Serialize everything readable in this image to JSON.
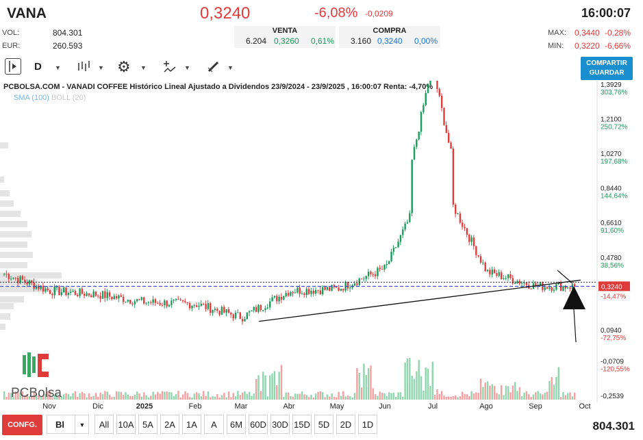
{
  "header": {
    "ticker": "VANA",
    "price": "0,3240",
    "change_pct": "-6,08%",
    "change_abs": "-0,0209",
    "time": "16:00:07"
  },
  "stats": {
    "vol_label": "VOL:",
    "vol_value": "804.301",
    "eur_label": "EUR:",
    "eur_value": "260.593",
    "max_label": "MAX:",
    "max_value": "0,3440",
    "max_pct": "-0,28%",
    "min_label": "MIN:",
    "min_value": "0,3220",
    "min_pct": "-6,66%"
  },
  "quotes": {
    "sell_label": "VENTA",
    "sell_qty": "6.204",
    "sell_price": "0,3260",
    "sell_pct": "0,61%",
    "buy_label": "COMPRA",
    "buy_qty": "3.160",
    "buy_price": "0,3240",
    "buy_pct": "0,00%"
  },
  "toolbar": {
    "interval": "D",
    "share_line1": "COMPARTIR",
    "share_line2": "GUARDAR"
  },
  "chart": {
    "title": "PCBOLSA.COM - VANADI COFFEE Histórico Lineal Ajustado a Dividendos 23/9/2024 - 23/9/2025 , 16:00:07 Renta: -4,70%",
    "sma_label": "SMA (100)",
    "boll_label": "BOLL (20)",
    "logo_text": "PCBolsa",
    "current_price_tag": "0,3240",
    "current_pct_tag": "-14,47%"
  },
  "bottom": {
    "config_label": "CONFG.",
    "mode_label": "Bl",
    "ranges": [
      "All",
      "10A",
      "5A",
      "2A",
      "1A",
      "A",
      "6M",
      "60D",
      "30D",
      "15D",
      "5D",
      "2D",
      "1D"
    ],
    "volume_total": "804.301"
  },
  "colors": {
    "up": "#1a9c5a",
    "down": "#e03b3b",
    "accent": "#1a8fcf"
  },
  "chart_data": {
    "type": "candlestick",
    "title": "PCBOLSA.COM - VANADI COFFEE Histórico Lineal Ajustado a Dividendos 23/9/2024 - 23/9/2025 , 16:00:07 Renta: -4,70%",
    "x_tick_labels": [
      "Nov",
      "Dic",
      "2025",
      "Feb",
      "Mar",
      "Abr",
      "May",
      "Jun",
      "Jul",
      "Ago",
      "Sep",
      "Oct"
    ],
    "y_tick_labels": [
      {
        "price": "1,3929",
        "pct": "303,76%"
      },
      {
        "price": "1,2100",
        "pct": "250,72%"
      },
      {
        "price": "1,0270",
        "pct": "197,68%"
      },
      {
        "price": "0,8440",
        "pct": "144,64%"
      },
      {
        "price": "0,6610",
        "pct": "91,60%"
      },
      {
        "price": "0,4780",
        "pct": "38,56%"
      },
      {
        "price": "0,3240",
        "pct": "-14,47%"
      },
      {
        "price": "0,0940",
        "pct": "-72,75%"
      },
      {
        "price": "-0,0709",
        "pct": "-120,55%"
      },
      {
        "price": "-0,2539",
        "pct": ""
      }
    ],
    "series": [
      {
        "name": "VANA",
        "points": [
          {
            "month": "Oct",
            "close": 0.39
          },
          {
            "month": "Nov",
            "close": 0.3
          },
          {
            "month": "Dic",
            "close": 0.28
          },
          {
            "month": "2025",
            "close": 0.24
          },
          {
            "month": "Feb",
            "close": 0.23
          },
          {
            "month": "Mar",
            "close": 0.16
          },
          {
            "month": "Abr",
            "close": 0.3
          },
          {
            "month": "May",
            "close": 0.31
          },
          {
            "month": "Jun",
            "close": 0.42
          },
          {
            "month": "Jul",
            "close": 0.95
          },
          {
            "month": "Ago",
            "close": 0.4
          },
          {
            "month": "Sep",
            "close": 0.324
          }
        ]
      }
    ],
    "ylim": [
      -0.2539,
      1.3929
    ],
    "grid": false
  }
}
